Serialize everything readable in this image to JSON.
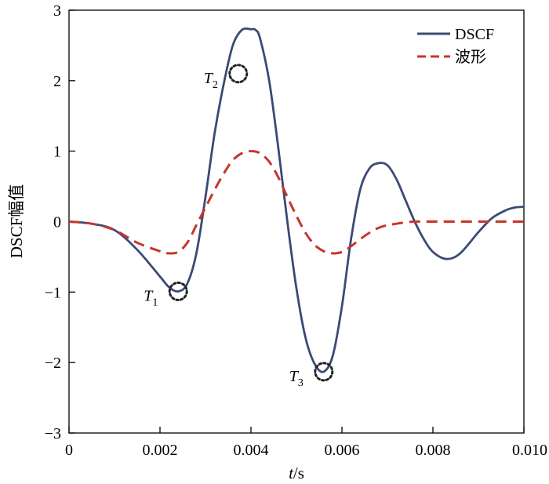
{
  "chart_data": {
    "type": "line",
    "title": "",
    "xlabel_italic": "t",
    "xlabel_rest": "/s",
    "ylabel": "DSCF幅值",
    "xlim": [
      0,
      0.01
    ],
    "ylim": [
      -3,
      3
    ],
    "xticks": [
      0,
      0.002,
      0.004,
      0.006,
      0.008,
      0.01
    ],
    "xtick_labels": [
      "0",
      "0.002",
      "0.004",
      "0.006",
      "0.008",
      "0.010"
    ],
    "yticks": [
      -3,
      -2,
      -1,
      0,
      1,
      2,
      3
    ],
    "ytick_labels": [
      "−3",
      "−2",
      "−1",
      "0",
      "1",
      "2",
      "3"
    ],
    "grid": false,
    "legend_position": "top-right",
    "series": [
      {
        "name": "DSCF",
        "color": "#3b4a75",
        "style": "solid",
        "x": [
          0,
          0.0005,
          0.001,
          0.0015,
          0.002,
          0.0022,
          0.0024,
          0.0026,
          0.0028,
          0.003,
          0.0032,
          0.0034,
          0.0036,
          0.0038,
          0.004,
          0.0041,
          0.0042,
          0.0044,
          0.0046,
          0.0048,
          0.005,
          0.0052,
          0.0054,
          0.0056,
          0.0058,
          0.006,
          0.0062,
          0.0064,
          0.0066,
          0.0068,
          0.007,
          0.0072,
          0.0074,
          0.0076,
          0.0078,
          0.008,
          0.0083,
          0.0086,
          0.009,
          0.0093,
          0.0096,
          0.0098,
          0.01
        ],
        "y": [
          0,
          -0.03,
          -0.12,
          -0.4,
          -0.78,
          -0.93,
          -0.99,
          -0.88,
          -0.45,
          0.35,
          1.25,
          1.95,
          2.5,
          2.72,
          2.73,
          2.72,
          2.6,
          2.0,
          1.05,
          0.0,
          -0.95,
          -1.65,
          -2.02,
          -2.13,
          -1.9,
          -1.2,
          -0.25,
          0.45,
          0.75,
          0.83,
          0.8,
          0.6,
          0.3,
          0.0,
          -0.25,
          -0.43,
          -0.53,
          -0.45,
          -0.15,
          0.05,
          0.16,
          0.2,
          0.21
        ]
      },
      {
        "name": "波形",
        "color": "#c8352b",
        "style": "dashed",
        "x": [
          0,
          0.0005,
          0.001,
          0.0015,
          0.002,
          0.0022,
          0.0024,
          0.0026,
          0.0028,
          0.003,
          0.0032,
          0.0034,
          0.0036,
          0.0038,
          0.004,
          0.0042,
          0.0044,
          0.0046,
          0.0048,
          0.005,
          0.0052,
          0.0054,
          0.0056,
          0.0058,
          0.006,
          0.0062,
          0.0064,
          0.0066,
          0.0068,
          0.007,
          0.0072,
          0.0074,
          0.0076,
          0.0078,
          0.008,
          0.0085,
          0.009,
          0.0095,
          0.01
        ],
        "y": [
          0,
          -0.03,
          -0.12,
          -0.3,
          -0.42,
          -0.45,
          -0.43,
          -0.3,
          -0.05,
          0.2,
          0.45,
          0.68,
          0.87,
          0.97,
          1.0,
          0.97,
          0.85,
          0.63,
          0.35,
          0.08,
          -0.16,
          -0.33,
          -0.42,
          -0.45,
          -0.43,
          -0.35,
          -0.25,
          -0.16,
          -0.09,
          -0.05,
          -0.03,
          -0.01,
          0.0,
          0.0,
          0.0,
          0.0,
          0.0,
          0.0,
          0.0
        ]
      }
    ],
    "markers": [
      {
        "label": "T",
        "sub": "1",
        "x": 0.0024,
        "y": -0.99,
        "label_side": "left"
      },
      {
        "label": "T",
        "sub": "2",
        "x": 0.00372,
        "y": 2.1,
        "label_side": "left"
      },
      {
        "label": "T",
        "sub": "3",
        "x": 0.0056,
        "y": -2.13,
        "label_side": "left"
      }
    ]
  }
}
